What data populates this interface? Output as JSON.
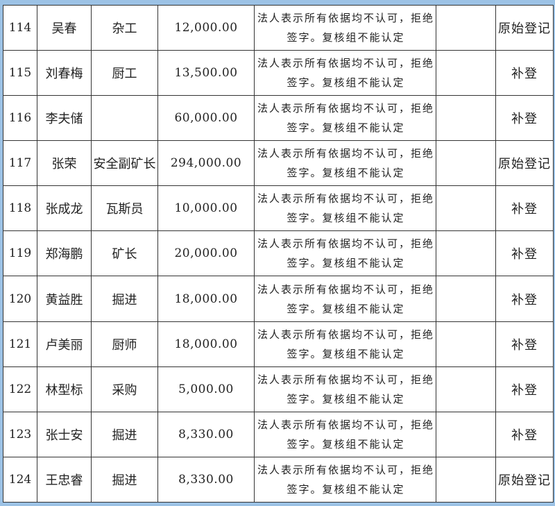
{
  "rows": [
    {
      "no": "114",
      "name": "吴春",
      "job": "杂工",
      "amount": "12,000.00",
      "remark": "法人表示所有依据均不认可，拒绝签字。复核组不能认定",
      "extra": "",
      "status": "原始登记"
    },
    {
      "no": "115",
      "name": "刘春梅",
      "job": "厨工",
      "amount": "13,500.00",
      "remark": "法人表示所有依据均不认可，拒绝签字。复核组不能认定",
      "extra": "",
      "status": "补登"
    },
    {
      "no": "116",
      "name": "李夫储",
      "job": "",
      "amount": "60,000.00",
      "remark": "法人表示所有依据均不认可，拒绝签字。复核组不能认定",
      "extra": "",
      "status": "补登"
    },
    {
      "no": "117",
      "name": "张荣",
      "job": "安全副矿长",
      "amount": "294,000.00",
      "remark": "法人表示所有依据均不认可，拒绝签字。复核组不能认定",
      "extra": "",
      "status": "原始登记"
    },
    {
      "no": "118",
      "name": "张成龙",
      "job": "瓦斯员",
      "amount": "10,000.00",
      "remark": "法人表示所有依据均不认可，拒绝签字。复核组不能认定",
      "extra": "",
      "status": "补登"
    },
    {
      "no": "119",
      "name": "郑海鹏",
      "job": "矿长",
      "amount": "20,000.00",
      "remark": "法人表示所有依据均不认可，拒绝签字。复核组不能认定",
      "extra": "",
      "status": "补登"
    },
    {
      "no": "120",
      "name": "黄益胜",
      "job": "掘进",
      "amount": "18,000.00",
      "remark": "法人表示所有依据均不认可，拒绝签字。复核组不能认定",
      "extra": "",
      "status": "补登"
    },
    {
      "no": "121",
      "name": "卢美丽",
      "job": "厨师",
      "amount": "18,000.00",
      "remark": "法人表示所有依据均不认可，拒绝签字。复核组不能认定",
      "extra": "",
      "status": "补登"
    },
    {
      "no": "122",
      "name": "林型标",
      "job": "采购",
      "amount": "5,000.00",
      "remark": "法人表示所有依据均不认可，拒绝签字。复核组不能认定",
      "extra": "",
      "status": "补登"
    },
    {
      "no": "123",
      "name": "张士安",
      "job": "掘进",
      "amount": "8,330.00",
      "remark": "法人表示所有依据均不认可，拒绝签字。复核组不能认定",
      "extra": "",
      "status": "补登"
    },
    {
      "no": "124",
      "name": "王忠睿",
      "job": "掘进",
      "amount": "8,330.00",
      "remark": "法人表示所有依据均不认可，拒绝签字。复核组不能认定",
      "extra": "",
      "status": "原始登记"
    }
  ]
}
